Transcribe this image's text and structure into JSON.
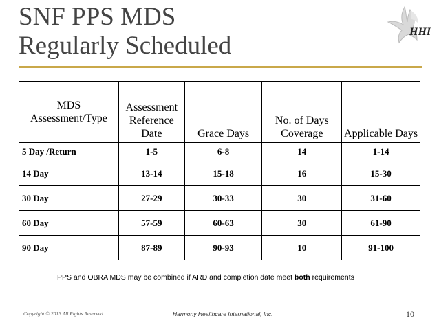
{
  "slide": {
    "title_line1": "SNF PPS MDS",
    "title_line2": "Regularly Scheduled",
    "logo_text": "HHI",
    "note_before": "PPS and OBRA MDS may be combined if ARD and completion date meet ",
    "note_bold": "both",
    "note_after": " requirements",
    "copyright": "Copyright © 2013 All Rights Reserved",
    "company": "Harmony Healthcare International, Inc.",
    "page_number": "10"
  },
  "table": {
    "headers": [
      "MDS Assessment/Type",
      "Assessment Reference Date",
      "Grace Days",
      "No. of  Days Coverage",
      "Applicable Days"
    ],
    "rows": [
      [
        "5 Day /Return",
        "1-5",
        "6-8",
        "14",
        "1-14"
      ],
      [
        "14 Day",
        "13-14",
        "15-18",
        "16",
        "15-30"
      ],
      [
        "30 Day",
        "27-29",
        "30-33",
        "30",
        "31-60"
      ],
      [
        "60 Day",
        "57-59",
        "60-63",
        "30",
        "61-90"
      ],
      [
        "90 Day",
        "87-89",
        "90-93",
        "10",
        "91-100"
      ]
    ]
  }
}
